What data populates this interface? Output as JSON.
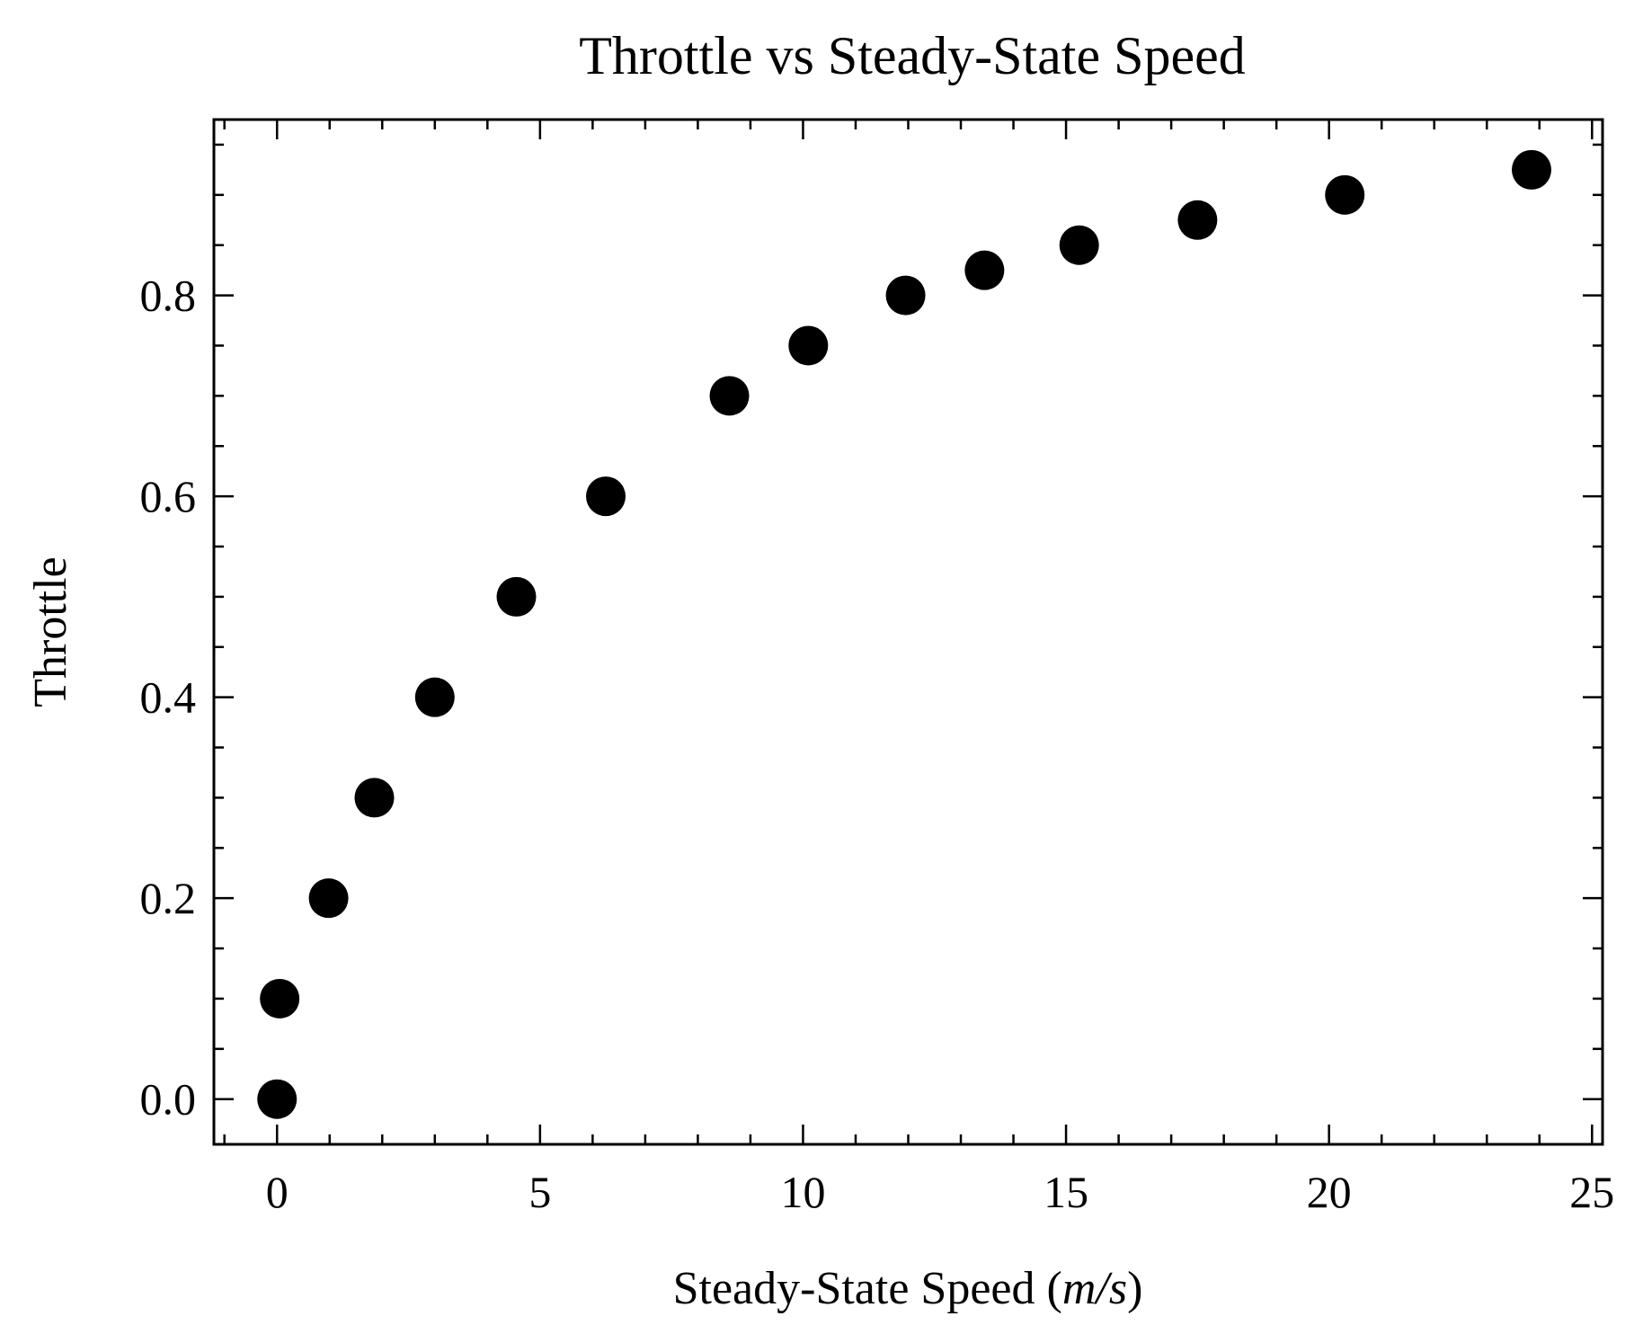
{
  "chart_data": {
    "type": "scatter",
    "title": "Throttle vs Steady-State Speed",
    "xlabel": "Steady-State Speed (m/s)",
    "xlabel_parts": {
      "prefix": "Steady-State Speed (",
      "math": "m/s",
      "suffix": ")"
    },
    "ylabel": "Throttle",
    "xlim": [
      -1.2,
      25.2
    ],
    "ylim": [
      -0.045,
      0.975
    ],
    "x_ticks": [
      0,
      5,
      10,
      15,
      20,
      25
    ],
    "x_tick_labels": [
      "0",
      "5",
      "10",
      "15",
      "20",
      "25"
    ],
    "y_ticks": [
      0.0,
      0.2,
      0.4,
      0.6,
      0.8
    ],
    "y_tick_labels": [
      "0.0",
      "0.2",
      "0.4",
      "0.6",
      "0.8"
    ],
    "x_minor_step": 1,
    "y_minor_step": 0.05,
    "grid": false,
    "legend": "none",
    "series": [
      {
        "x": [
          0.0,
          0.05,
          0.98,
          1.85,
          3.0,
          4.55,
          6.25,
          8.6,
          10.1,
          11.95,
          13.45,
          15.25,
          17.5,
          20.3,
          23.85
        ],
        "y": [
          0.0,
          0.1,
          0.2,
          0.3,
          0.4,
          0.5,
          0.6,
          0.7,
          0.75,
          0.8,
          0.825,
          0.85,
          0.875,
          0.9,
          0.925
        ],
        "color": "#000000",
        "marker": "circle"
      }
    ]
  }
}
